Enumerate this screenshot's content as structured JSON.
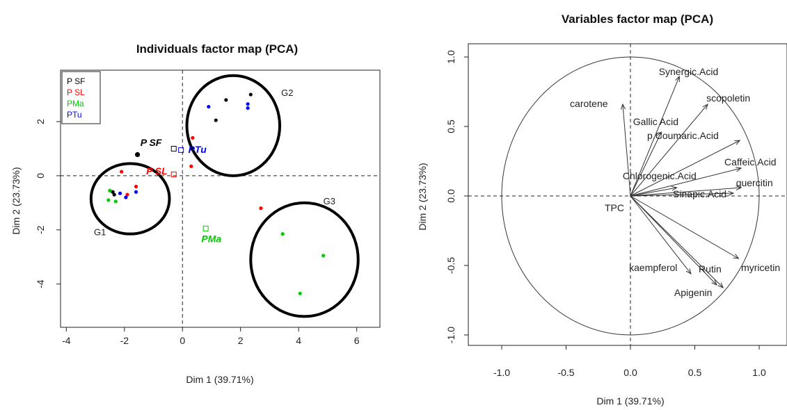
{
  "chart_data": [
    {
      "type": "scatter",
      "title": "Individuals factor map (PCA)",
      "xlabel": "Dim 1 (39.71%)",
      "ylabel": "Dim 2 (23.73%)",
      "xlim": [
        -4.2,
        6.8
      ],
      "ylim": [
        -5.6,
        3.9
      ],
      "xticks": [
        "-4",
        "-2",
        "0",
        "2",
        "4",
        "6"
      ],
      "yticks": [
        "2",
        "0",
        "-2",
        "-4"
      ],
      "xtick_values": [
        -4,
        -2,
        0,
        2,
        4,
        6
      ],
      "ytick_values": [
        2,
        0,
        -2,
        -4
      ],
      "reference_lines": {
        "x": 0,
        "y": 0,
        "style": "dashed"
      },
      "legend": {
        "placement": "top-left",
        "entries": [
          {
            "label": "P SF",
            "color": "#000000"
          },
          {
            "label": "P SL",
            "color": "#ff0000"
          },
          {
            "label": "PMa",
            "color": "#00cc00"
          },
          {
            "label": "PTu",
            "color": "#0000ff"
          }
        ]
      },
      "series": [
        {
          "name": "P SF",
          "color": "#000000",
          "x": [
            1.5,
            2.35,
            1.15,
            -2.5,
            -2.4,
            -2.35
          ],
          "y": [
            2.8,
            3.0,
            2.05,
            -0.55,
            -0.6,
            -0.7
          ]
        },
        {
          "name": "P SL",
          "color": "#ff0000",
          "x": [
            0.35,
            0.3,
            -1.6,
            -1.9,
            -2.1,
            2.7
          ],
          "y": [
            1.4,
            0.35,
            -0.4,
            -0.7,
            0.15,
            -1.2
          ]
        },
        {
          "name": "PMa",
          "color": "#00cc00",
          "x": [
            -2.5,
            -2.55,
            -2.3,
            3.45,
            4.85,
            4.05
          ],
          "y": [
            -0.55,
            -0.9,
            -0.95,
            -2.15,
            -2.95,
            -4.35
          ]
        },
        {
          "name": "PTu",
          "color": "#0000ff",
          "x": [
            0.9,
            2.25,
            2.25,
            -2.15,
            -1.95,
            -1.6
          ],
          "y": [
            2.55,
            2.65,
            2.5,
            -0.65,
            -0.8,
            -0.6
          ]
        }
      ],
      "centroids": [
        {
          "label": "P SF",
          "color": "#000000",
          "x": -0.3,
          "y": 1.0
        },
        {
          "label": "PTu",
          "color": "#0000ff",
          "x": -0.05,
          "y": 0.95
        },
        {
          "label": "P SL",
          "color": "#ff0000",
          "x": -0.3,
          "y": 0.05
        },
        {
          "label": "PMa",
          "color": "#00cc00",
          "x": 0.8,
          "y": -1.95
        }
      ],
      "centroid_label_pos": [
        {
          "x": -1.45,
          "y": 1.1
        },
        {
          "x": 0.2,
          "y": 0.85
        },
        {
          "x": -1.25,
          "y": 0.05
        },
        {
          "x": 0.65,
          "y": -2.45
        }
      ],
      "extra_point": {
        "color": "#000000",
        "x": -1.55,
        "y": 0.78
      },
      "groups": [
        {
          "label": "G1",
          "cx": -1.8,
          "cy": -0.85,
          "rx": 1.35,
          "ry": 1.3,
          "lx": -3.05,
          "ly": -2.2
        },
        {
          "label": "G2",
          "cx": 1.75,
          "cy": 1.85,
          "rx": 1.6,
          "ry": 1.85,
          "lx": 3.4,
          "ly": 2.95
        },
        {
          "label": "G3",
          "cx": 4.2,
          "cy": -3.1,
          "rx": 1.85,
          "ry": 2.1,
          "lx": 4.85,
          "ly": -1.05
        }
      ]
    },
    {
      "type": "scatter",
      "title": "Variables factor map (PCA)",
      "xlabel": "Dim 1 (39.71%)",
      "ylabel": "Dim 2 (23.73%)",
      "xlim": [
        -1.25,
        1.25
      ],
      "ylim": [
        -1.08,
        1.08
      ],
      "xticks": [
        "-1.0",
        "-0.5",
        "0.0",
        "0.5",
        "1.0"
      ],
      "yticks": [
        "1.0",
        "0.5",
        "0.0",
        "-0.5",
        "-1.0"
      ],
      "xtick_values": [
        -1.0,
        -0.5,
        0.0,
        0.5,
        1.0
      ],
      "ytick_values": [
        1.0,
        0.5,
        0.0,
        -0.5,
        -1.0
      ],
      "unit_circle": true,
      "reference_lines": {
        "x": 0,
        "y": 0,
        "style": "dashed"
      },
      "vectors": [
        {
          "name": "Synergic.Acid",
          "x": 0.38,
          "y": 0.86,
          "lx": 0.22,
          "ly": 0.87
        },
        {
          "name": "scopoletin",
          "x": 0.6,
          "y": 0.66,
          "lx": 0.59,
          "ly": 0.68
        },
        {
          "name": "carotene",
          "x": -0.06,
          "y": 0.66,
          "lx": -0.47,
          "ly": 0.64
        },
        {
          "name": "Gallic Acid",
          "x": 0.24,
          "y": 0.46,
          "lx": 0.02,
          "ly": 0.51
        },
        {
          "name": "p.Coumaric.Acid",
          "x": 0.85,
          "y": 0.4,
          "lx": 0.13,
          "ly": 0.41
        },
        {
          "name": "Caffeic.Acid",
          "x": 0.86,
          "y": 0.2,
          "lx": 0.73,
          "ly": 0.22
        },
        {
          "name": "Chlorogenic.Acid",
          "x": 0.36,
          "y": 0.06,
          "lx": -0.06,
          "ly": 0.12
        },
        {
          "name": "quercitin",
          "x": 0.86,
          "y": 0.06,
          "lx": 0.82,
          "ly": 0.07
        },
        {
          "name": "Sinapic.Acid",
          "x": 0.8,
          "y": 0.02,
          "lx": 0.33,
          "ly": -0.01
        },
        {
          "name": "TPC",
          "x": 0.0,
          "y": 0.0,
          "lx": -0.2,
          "ly": -0.11
        },
        {
          "name": "myricetin",
          "x": 0.84,
          "y": -0.45,
          "lx": 0.86,
          "ly": -0.54
        },
        {
          "name": "kaempferol",
          "x": 0.47,
          "y": -0.56,
          "lx": -0.01,
          "ly": -0.54
        },
        {
          "name": "Rutin",
          "x": 0.67,
          "y": -0.64,
          "lx": 0.53,
          "ly": -0.55
        },
        {
          "name": "Apigenin",
          "x": 0.72,
          "y": -0.66,
          "lx": 0.34,
          "ly": -0.72
        }
      ]
    }
  ]
}
